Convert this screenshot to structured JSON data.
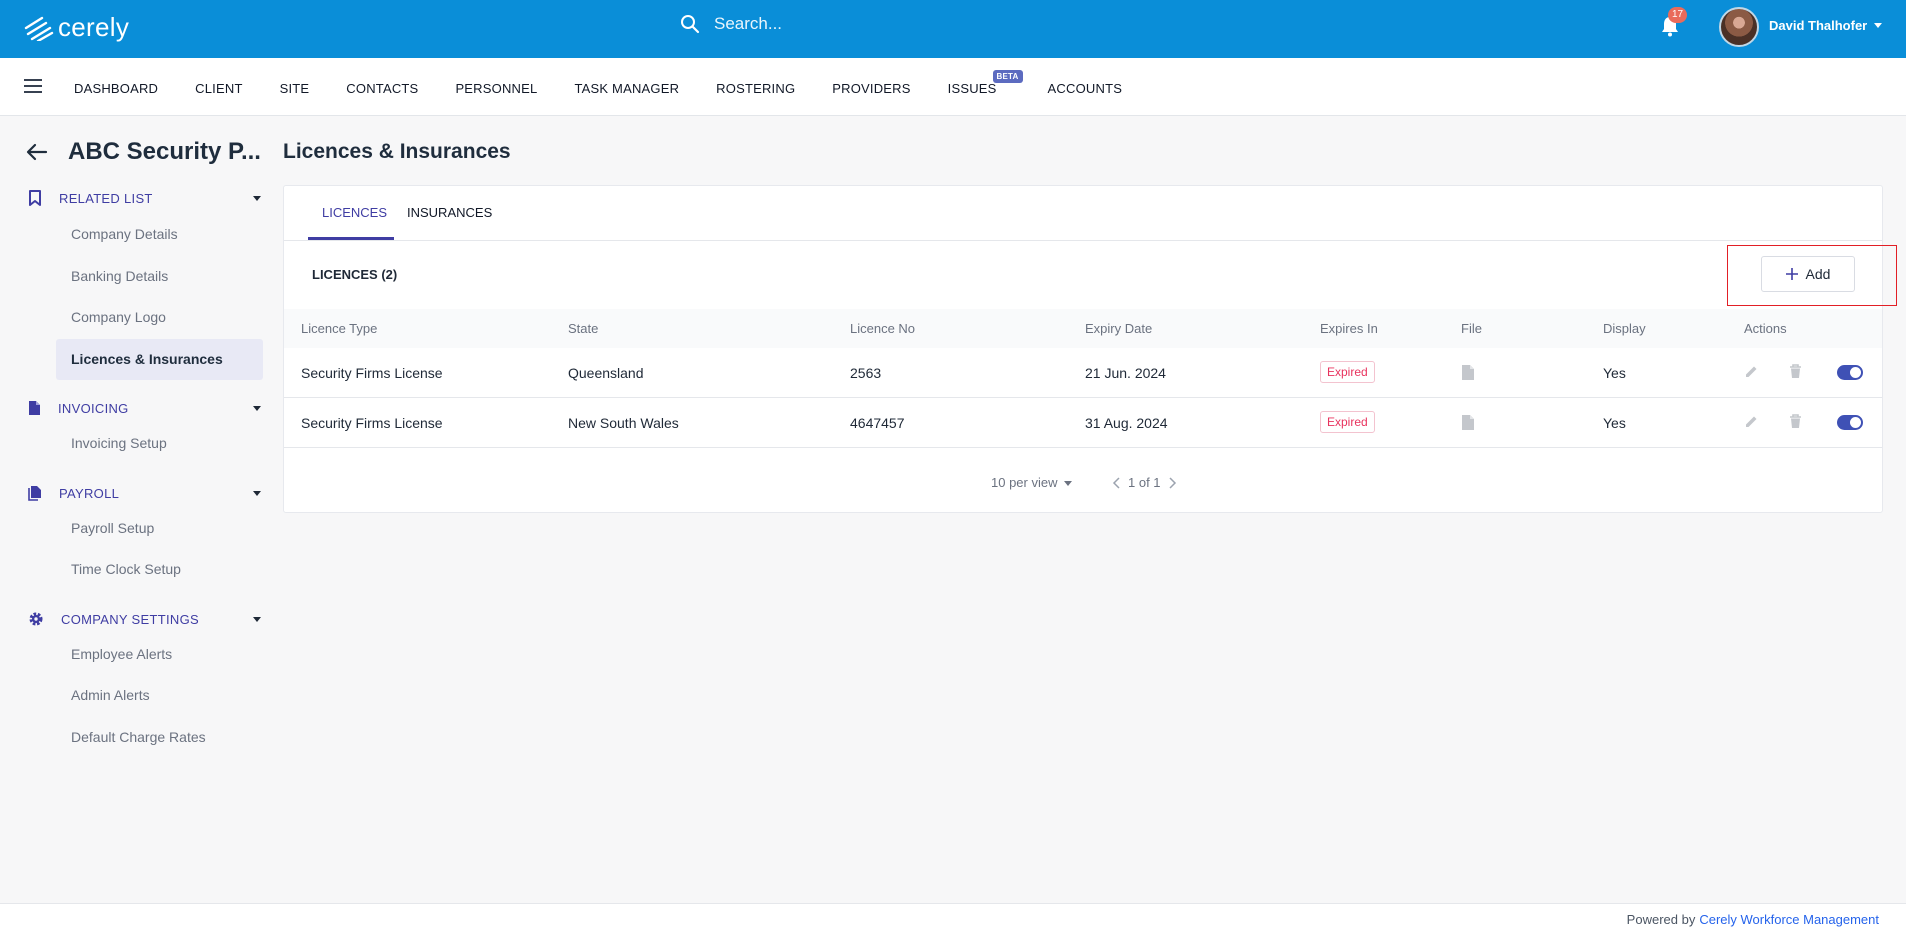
{
  "header": {
    "logo_text": "cerely",
    "search_placeholder": "Search...",
    "notification_count": "17",
    "user_name": "David Thalhofer"
  },
  "nav": {
    "items": [
      "DASHBOARD",
      "CLIENT",
      "SITE",
      "CONTACTS",
      "PERSONNEL",
      "TASK MANAGER",
      "ROSTERING",
      "PROVIDERS",
      "ISSUES",
      "ACCOUNTS"
    ],
    "beta_label": "BETA"
  },
  "sidebar": {
    "company_name": "ABC Security P...",
    "sections": [
      {
        "label": "RELATED LIST",
        "icon": "bookmark-icon",
        "items": [
          "Company Details",
          "Banking Details",
          "Company Logo",
          "Licences & Insurances"
        ]
      },
      {
        "label": "INVOICING",
        "icon": "document-icon",
        "items": [
          "Invoicing Setup"
        ]
      },
      {
        "label": "PAYROLL",
        "icon": "documents-icon",
        "items": [
          "Payroll Setup",
          "Time Clock Setup"
        ]
      },
      {
        "label": "COMPANY SETTINGS",
        "icon": "gear-icon",
        "items": [
          "Employee Alerts",
          "Admin Alerts",
          "Default Charge Rates"
        ]
      }
    ]
  },
  "main": {
    "title": "Licences & Insurances",
    "tabs": [
      "LICENCES",
      "INSURANCES"
    ],
    "list_title": "LICENCES (2)",
    "add_label": "Add",
    "columns": [
      "Licence Type",
      "State",
      "Licence No",
      "Expiry Date",
      "Expires In",
      "File",
      "Display",
      "Actions"
    ],
    "rows": [
      {
        "type": "Security Firms License",
        "state": "Queensland",
        "licence_no": "2563",
        "expiry": "21 Jun. 2024",
        "expires_in": "Expired",
        "display": "Yes"
      },
      {
        "type": "Security Firms License",
        "state": "New South Wales",
        "licence_no": "4647457",
        "expiry": "31 Aug. 2024",
        "expires_in": "Expired",
        "display": "Yes"
      }
    ],
    "per_view": "10 per view",
    "page_info": "1 of 1"
  },
  "footer": {
    "powered_by": "Powered by",
    "link": "Cerely Workforce Management"
  },
  "colors": {
    "topbar": "#0a8ed8",
    "accent": "#3f3da3",
    "expired": "#e8335e",
    "highlight": "#e21f26"
  }
}
